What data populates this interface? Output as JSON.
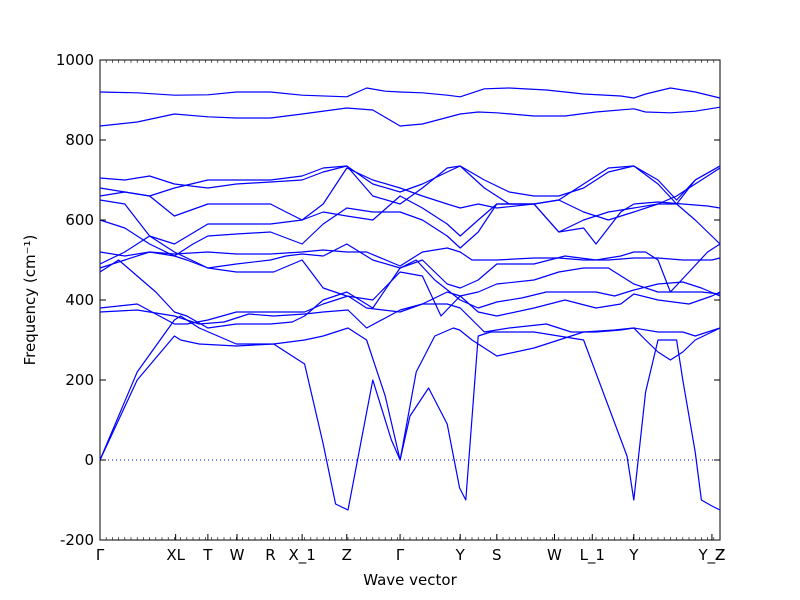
{
  "chart_data": {
    "type": "line",
    "xlabel": "Wave vector",
    "ylabel": "Frequency (cm⁻¹)",
    "ylim": [
      -200,
      1000
    ],
    "yticks": [
      -200,
      0,
      200,
      400,
      600,
      800,
      1000
    ],
    "xlim": [
      0,
      100
    ],
    "high_symmetry_points": [
      {
        "label": "Γ",
        "x": 0
      },
      {
        "label": "XL",
        "x": 12.2
      },
      {
        "label": "T",
        "x": 17.4
      },
      {
        "label": "W",
        "x": 22.1
      },
      {
        "label": "R",
        "x": 27.5
      },
      {
        "label": "X_1",
        "x": 32.6
      },
      {
        "label": "Z",
        "x": 39.8
      },
      {
        "label": "Γ",
        "x": 48.4
      },
      {
        "label": "Y",
        "x": 58.1
      },
      {
        "label": "S",
        "x": 64.0
      },
      {
        "label": "W",
        "x": 73.3
      },
      {
        "label": "L_1",
        "x": 79.4
      },
      {
        "label": "Y",
        "x": 86.1
      },
      {
        "label": "Y_Z",
        "x": 98.7
      },
      {
        "label": "Z",
        "x": 100
      }
    ],
    "zero_line": {
      "y": 0,
      "style": "dotted"
    },
    "series_color": "#0000ff",
    "series": [
      {
        "x": [
          0,
          6,
          12,
          13,
          16,
          22,
          28,
          33,
          36,
          38,
          40,
          44,
          47,
          48.4,
          50,
          53,
          56,
          58,
          59,
          61,
          63,
          70,
          78,
          85,
          86.1,
          88,
          90,
          93,
          94,
          96,
          97,
          98.7,
          100
        ],
        "y": [
          0,
          220,
          350,
          360,
          330,
          290,
          290,
          240,
          40,
          -110,
          -125,
          200,
          50,
          0,
          110,
          180,
          90,
          -70,
          -100,
          310,
          320,
          320,
          300,
          10,
          -100,
          170,
          300,
          300,
          200,
          20,
          -100,
          -115,
          -125
        ]
      },
      {
        "x": [
          0,
          6,
          12,
          13,
          16,
          22,
          28,
          33,
          36,
          38,
          40,
          43,
          46,
          48.4,
          51,
          54,
          57,
          58,
          60,
          64,
          70,
          78,
          83,
          86.1,
          88,
          90,
          92,
          94,
          96,
          98.7,
          100
        ],
        "y": [
          0,
          200,
          310,
          300,
          290,
          285,
          290,
          300,
          310,
          320,
          330,
          300,
          160,
          0,
          220,
          310,
          330,
          325,
          300,
          260,
          280,
          320,
          325,
          330,
          300,
          270,
          250,
          270,
          300,
          320,
          330
        ]
      },
      {
        "x": [
          0,
          6,
          12,
          16,
          20,
          24,
          28,
          33,
          36,
          40,
          43,
          48.4,
          52,
          56,
          58.1,
          62,
          66,
          72,
          76,
          80,
          84,
          86.1,
          90,
          94,
          96,
          100
        ],
        "y": [
          370,
          375,
          360,
          340,
          345,
          365,
          360,
          365,
          370,
          375,
          330,
          375,
          390,
          390,
          380,
          320,
          330,
          340,
          320,
          320,
          325,
          330,
          320,
          320,
          310,
          330
        ]
      },
      {
        "x": [
          0,
          6,
          12,
          14,
          17.4,
          22,
          28,
          33,
          36,
          40,
          43,
          48.4,
          52,
          56,
          58.1,
          61,
          64,
          70,
          75,
          80,
          84,
          86.1,
          90,
          95,
          98.7,
          100
        ],
        "y": [
          380,
          390,
          340,
          340,
          350,
          370,
          370,
          370,
          390,
          410,
          380,
          370,
          390,
          420,
          410,
          370,
          360,
          380,
          400,
          380,
          390,
          415,
          400,
          390,
          410,
          420
        ]
      },
      {
        "x": [
          0,
          3,
          6,
          9,
          12,
          14,
          17.4,
          22,
          27.5,
          31,
          33,
          36,
          39.8,
          44,
          48.4,
          51,
          54,
          58.1,
          61,
          64,
          68,
          72,
          76,
          80,
          83,
          86.1,
          90,
          94,
          97,
          100
        ],
        "y": [
          470,
          500,
          460,
          420,
          370,
          360,
          330,
          340,
          340,
          345,
          360,
          400,
          420,
          380,
          480,
          500,
          450,
          400,
          380,
          395,
          405,
          420,
          420,
          420,
          410,
          425,
          440,
          445,
          430,
          410
        ]
      },
      {
        "x": [
          0,
          4,
          8,
          12,
          14,
          17.4,
          22,
          28,
          32.6,
          36,
          39.8,
          44,
          48.4,
          52,
          55,
          58.1,
          61,
          64,
          70,
          74,
          78,
          82,
          86.1,
          90,
          94,
          97,
          100
        ],
        "y": [
          480,
          500,
          520,
          510,
          500,
          480,
          470,
          470,
          500,
          430,
          410,
          400,
          470,
          460,
          360,
          410,
          420,
          440,
          450,
          470,
          480,
          480,
          440,
          420,
          420,
          420,
          415
        ]
      },
      {
        "x": [
          0,
          4,
          8,
          12,
          17.4,
          22,
          27.5,
          30,
          32.6,
          36,
          39.8,
          44,
          48.4,
          52,
          56,
          58.1,
          61,
          64,
          70,
          75,
          80,
          84,
          86.1,
          88,
          90,
          92,
          95,
          98,
          100
        ],
        "y": [
          490,
          520,
          560,
          520,
          480,
          490,
          500,
          510,
          515,
          510,
          540,
          500,
          480,
          500,
          440,
          430,
          450,
          490,
          490,
          510,
          500,
          510,
          520,
          520,
          500,
          420,
          470,
          520,
          540
        ]
      },
      {
        "x": [
          0,
          4,
          8,
          12,
          17.4,
          22,
          27.5,
          32.6,
          36,
          39.8,
          43,
          48.4,
          52,
          56,
          58.1,
          60,
          64,
          70,
          74,
          78,
          82,
          86.1,
          90,
          94,
          98.7,
          100
        ],
        "y": [
          520,
          510,
          520,
          515,
          520,
          515,
          515,
          520,
          525,
          520,
          520,
          485,
          520,
          530,
          520,
          500,
          500,
          505,
          505,
          500,
          500,
          505,
          505,
          500,
          500,
          505
        ]
      },
      {
        "x": [
          0,
          4,
          8,
          12,
          15,
          17.4,
          22,
          27.5,
          32.6,
          36,
          39.8,
          44,
          48.4,
          52,
          56,
          58.1,
          61,
          64,
          70,
          74,
          78,
          80,
          84,
          86.1,
          90,
          94,
          98,
          100
        ],
        "y": [
          600,
          580,
          540,
          510,
          540,
          560,
          565,
          570,
          540,
          590,
          630,
          620,
          620,
          600,
          560,
          530,
          570,
          640,
          640,
          570,
          580,
          540,
          620,
          640,
          645,
          640,
          635,
          630
        ]
      },
      {
        "x": [
          0,
          4,
          8,
          12,
          17.4,
          22,
          27.5,
          32.6,
          36,
          39.8,
          44,
          48.4,
          52,
          56,
          58.1,
          61,
          64,
          70,
          74,
          78,
          82,
          86.1,
          90,
          93,
          96,
          100
        ],
        "y": [
          650,
          640,
          560,
          540,
          590,
          590,
          590,
          600,
          620,
          610,
          600,
          660,
          630,
          590,
          560,
          600,
          640,
          640,
          570,
          600,
          620,
          630,
          640,
          640,
          600,
          540
        ]
      },
      {
        "x": [
          0,
          4,
          8,
          12,
          17.4,
          22,
          27.5,
          30,
          32.6,
          36,
          39.8,
          44,
          48.4,
          52,
          56,
          58.1,
          61,
          64,
          70,
          74,
          78,
          82,
          86.1,
          90,
          93,
          96,
          100
        ],
        "y": [
          660,
          670,
          660,
          610,
          640,
          640,
          640,
          620,
          600,
          640,
          730,
          700,
          680,
          660,
          640,
          630,
          640,
          630,
          640,
          650,
          620,
          600,
          620,
          640,
          660,
          690,
          730
        ]
      },
      {
        "x": [
          0,
          4,
          8,
          12,
          17.4,
          22,
          27.5,
          32.6,
          36,
          39.8,
          44,
          48.4,
          52,
          56,
          58.1,
          62,
          66,
          70,
          74,
          78,
          82,
          86.1,
          90,
          93,
          96,
          100
        ],
        "y": [
          680,
          670,
          660,
          680,
          700,
          700,
          700,
          710,
          730,
          735,
          690,
          670,
          690,
          720,
          735,
          700,
          670,
          660,
          660,
          680,
          720,
          735,
          690,
          640,
          700,
          735
        ]
      },
      {
        "x": [
          0,
          4,
          8,
          12,
          17.4,
          22,
          27.5,
          32.6,
          36,
          39.8,
          44,
          48.4,
          52,
          56,
          58.1,
          62,
          66,
          70,
          74,
          78,
          82,
          86.1,
          90,
          93,
          96,
          100
        ],
        "y": [
          705,
          700,
          710,
          690,
          680,
          690,
          695,
          700,
          720,
          735,
          660,
          640,
          680,
          730,
          735,
          680,
          640,
          640,
          650,
          690,
          730,
          735,
          700,
          650,
          700,
          735
        ]
      },
      {
        "x": [
          0,
          6,
          12,
          17.4,
          22,
          27.5,
          32.6,
          39.8,
          44,
          48.4,
          52,
          58.1,
          61,
          64,
          70,
          75,
          80,
          86.1,
          88,
          92,
          96,
          100
        ],
        "y": [
          835,
          845,
          865,
          858,
          855,
          855,
          865,
          880,
          875,
          835,
          840,
          865,
          870,
          868,
          860,
          860,
          870,
          878,
          870,
          868,
          872,
          882
        ]
      },
      {
        "x": [
          0,
          6,
          12,
          17.4,
          22,
          27.5,
          32.6,
          39.8,
          43,
          46,
          48.4,
          52,
          56,
          58.1,
          62,
          66,
          72,
          78,
          84,
          86.1,
          88,
          92,
          96,
          100
        ],
        "y": [
          920,
          918,
          912,
          913,
          920,
          920,
          912,
          908,
          930,
          922,
          920,
          918,
          912,
          908,
          928,
          930,
          925,
          915,
          910,
          905,
          915,
          930,
          920,
          905
        ]
      }
    ]
  }
}
